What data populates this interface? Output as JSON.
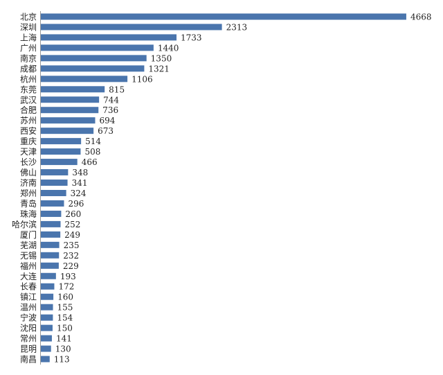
{
  "chart_data": {
    "type": "bar",
    "orientation": "horizontal",
    "color": "#4a75ad",
    "categories": [
      "北京",
      "深圳",
      "上海",
      "广州",
      "南京",
      "成都",
      "杭州",
      "东莞",
      "武汉",
      "合肥",
      "苏州",
      "西安",
      "重庆",
      "天津",
      "长沙",
      "佛山",
      "济南",
      "郑州",
      "青岛",
      "珠海",
      "哈尔滨",
      "厦门",
      "芜湖",
      "无锡",
      "福州",
      "大连",
      "长春",
      "镇江",
      "温州",
      "宁波",
      "沈阳",
      "常州",
      "昆明",
      "南昌"
    ],
    "values": [
      4668,
      2313,
      1733,
      1440,
      1350,
      1321,
      1106,
      815,
      744,
      736,
      694,
      673,
      514,
      508,
      466,
      348,
      341,
      324,
      296,
      260,
      252,
      249,
      235,
      232,
      229,
      193,
      172,
      160,
      155,
      154,
      150,
      141,
      130,
      113
    ]
  }
}
